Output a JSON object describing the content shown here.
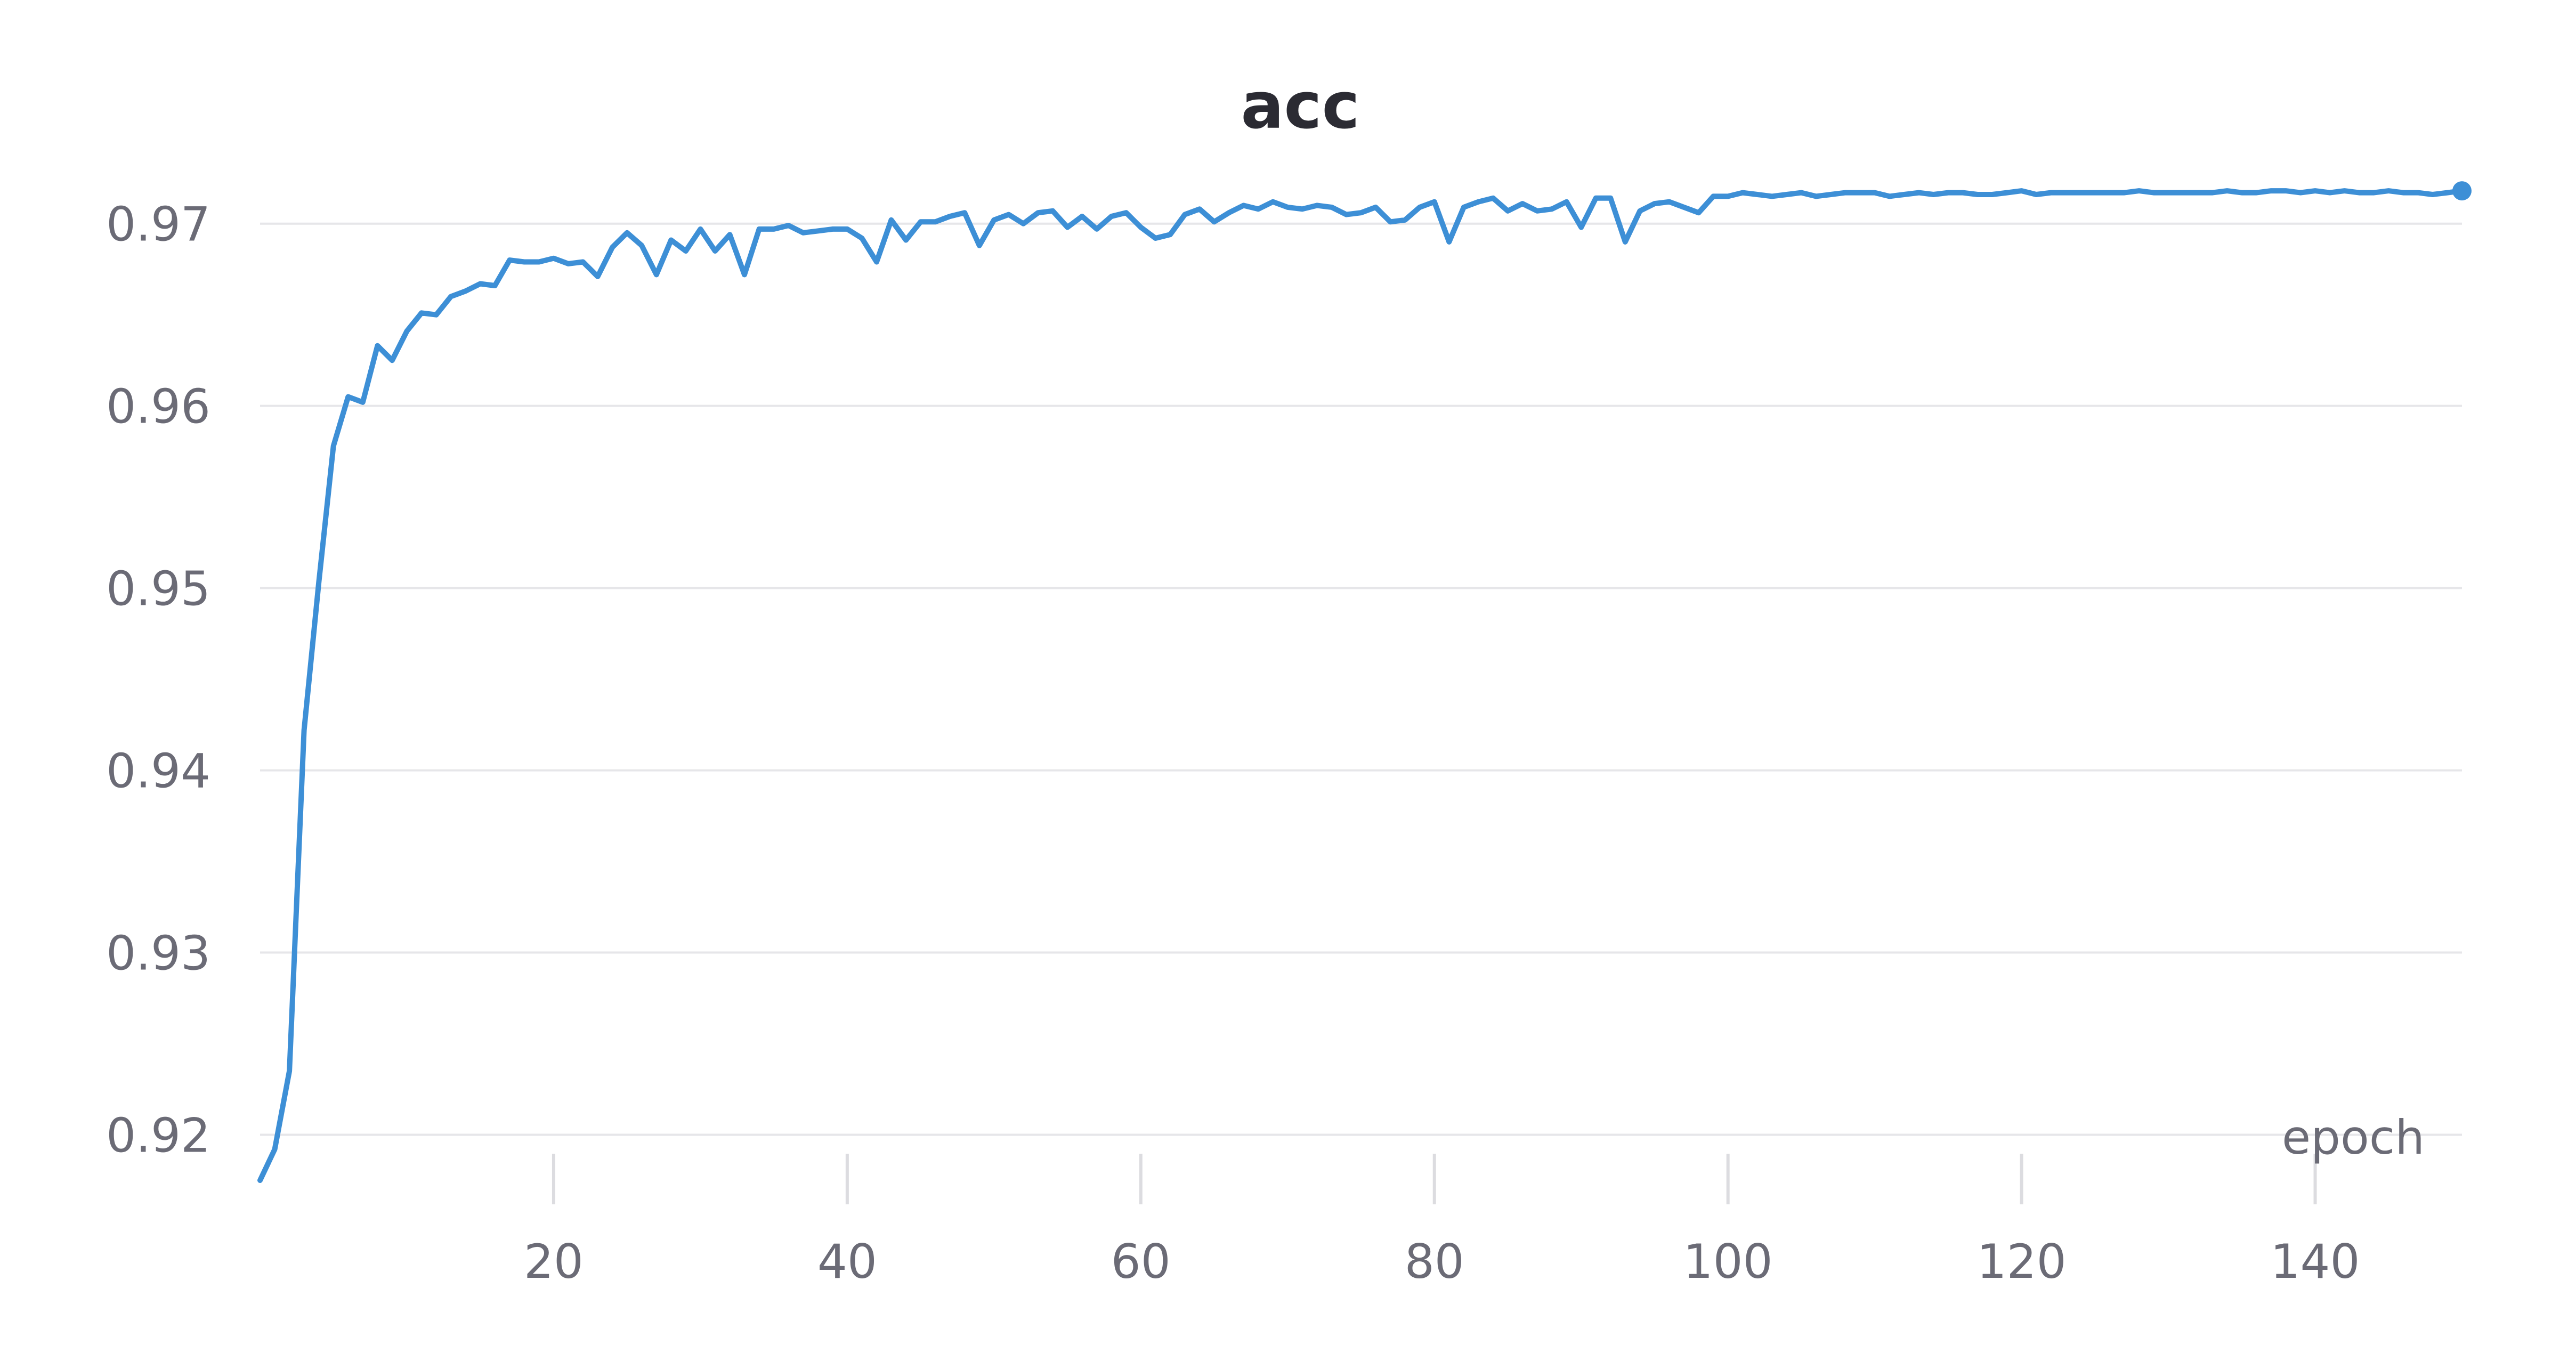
{
  "chart_data": {
    "type": "line",
    "title": "acc",
    "xlabel": "epoch",
    "ylabel": "",
    "xlim": [
      0,
      150
    ],
    "ylim": [
      0.9175,
      0.9735
    ],
    "x_ticks": [
      20,
      40,
      60,
      80,
      100,
      120,
      140
    ],
    "y_ticks": [
      0.92,
      0.93,
      0.94,
      0.95,
      0.96,
      0.97
    ],
    "y_tick_labels": [
      "0.92",
      "0.93",
      "0.94",
      "0.95",
      "0.96",
      "0.97"
    ],
    "x_tick_labels": [
      "20",
      "40",
      "60",
      "80",
      "100",
      "120",
      "140"
    ],
    "grid": true,
    "legend": "none",
    "colors": {
      "line": "#3d8fd6",
      "grid": "#e6e6e9",
      "text": "#6b6b76",
      "title": "#2b2b33"
    },
    "series": [
      {
        "x": [
          0,
          1,
          2,
          3,
          4,
          5,
          6,
          7,
          8,
          9,
          10,
          11,
          12,
          13,
          14,
          15,
          16,
          17,
          18,
          19,
          20,
          21,
          22,
          23,
          24,
          25,
          26,
          27,
          28,
          29,
          30,
          31,
          32,
          33,
          34,
          35,
          36,
          37,
          38,
          39,
          40,
          41,
          42,
          43,
          44,
          45,
          46,
          47,
          48,
          49,
          50,
          51,
          52,
          53,
          54,
          55,
          56,
          57,
          58,
          59,
          60,
          61,
          62,
          63,
          64,
          65,
          66,
          67,
          68,
          69,
          70,
          71,
          72,
          73,
          74,
          75,
          76,
          77,
          78,
          79,
          80,
          81,
          82,
          83,
          84,
          85,
          86,
          87,
          88,
          89,
          90,
          91,
          92,
          93,
          94,
          95,
          96,
          97,
          98,
          99,
          100,
          101,
          102,
          103,
          104,
          105,
          106,
          107,
          108,
          109,
          110,
          111,
          112,
          113,
          114,
          115,
          116,
          117,
          118,
          119,
          120,
          121,
          122,
          123,
          124,
          125,
          126,
          127,
          128,
          129,
          130,
          131,
          132,
          133,
          134,
          135,
          136,
          137,
          138,
          139,
          140,
          141,
          142,
          143,
          144,
          145,
          146,
          147,
          148,
          149,
          150
        ],
        "values": [
          0.9175,
          0.9192,
          0.9235,
          0.9422,
          0.9503,
          0.9578,
          0.9605,
          0.9602,
          0.9633,
          0.9625,
          0.9641,
          0.9651,
          0.965,
          0.966,
          0.9663,
          0.9667,
          0.9666,
          0.968,
          0.9679,
          0.9679,
          0.9681,
          0.9678,
          0.9679,
          0.9671,
          0.9687,
          0.9695,
          0.9688,
          0.9672,
          0.9691,
          0.9685,
          0.9697,
          0.9685,
          0.9694,
          0.9672,
          0.9697,
          0.9697,
          0.9699,
          0.9695,
          0.9696,
          0.9697,
          0.9697,
          0.9692,
          0.9679,
          0.9702,
          0.9691,
          0.9701,
          0.9701,
          0.9704,
          0.9706,
          0.9688,
          0.9702,
          0.9705,
          0.97,
          0.9706,
          0.9707,
          0.9698,
          0.9704,
          0.9697,
          0.9704,
          0.9706,
          0.9698,
          0.9692,
          0.9694,
          0.9705,
          0.9708,
          0.9701,
          0.9706,
          0.971,
          0.9708,
          0.9712,
          0.9709,
          0.9708,
          0.971,
          0.9709,
          0.9705,
          0.9706,
          0.9709,
          0.9701,
          0.9702,
          0.9709,
          0.9712,
          0.969,
          0.9709,
          0.9712,
          0.9714,
          0.9707,
          0.9711,
          0.9707,
          0.9708,
          0.9712,
          0.9698,
          0.9714,
          0.9714,
          0.969,
          0.9707,
          0.9711,
          0.9712,
          0.9709,
          0.9706,
          0.9715,
          0.9715,
          0.9717,
          0.9716,
          0.9715,
          0.9716,
          0.9717,
          0.9715,
          0.9716,
          0.9717,
          0.9717,
          0.9717,
          0.9715,
          0.9716,
          0.9717,
          0.9716,
          0.9717,
          0.9717,
          0.9716,
          0.9716,
          0.9717,
          0.9718,
          0.9716,
          0.9717,
          0.9717,
          0.9717,
          0.9717,
          0.9717,
          0.9717,
          0.9718,
          0.9717,
          0.9717,
          0.9717,
          0.9717,
          0.9717,
          0.9718,
          0.9717,
          0.9717,
          0.9718,
          0.9718,
          0.9717,
          0.9718,
          0.9717,
          0.9718,
          0.9717,
          0.9717,
          0.9718,
          0.9717,
          0.9717,
          0.9716,
          0.9717,
          0.9718
        ]
      }
    ]
  }
}
